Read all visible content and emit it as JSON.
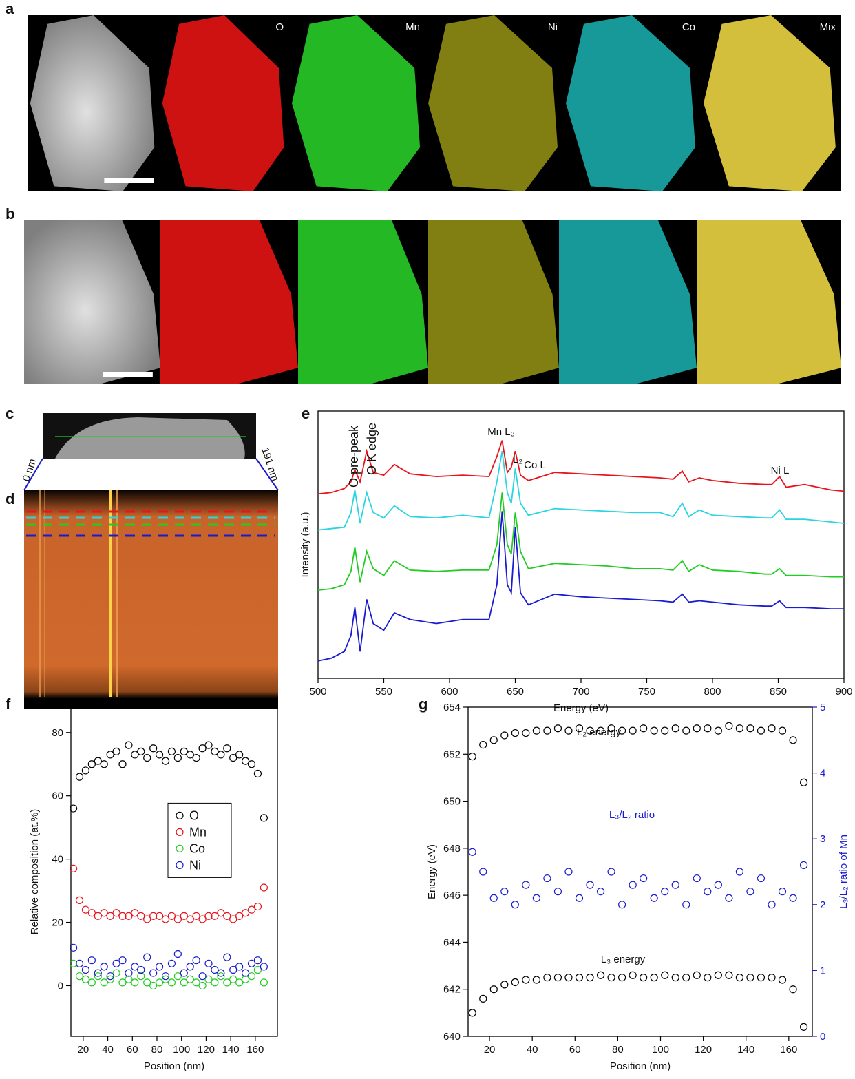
{
  "images": {
    "a": {
      "panel": "a",
      "labels": [
        "O",
        "Mn",
        "Ni",
        "Co",
        "Mix"
      ]
    },
    "b": {
      "panel": "b"
    },
    "c": {
      "panel": "c",
      "start": "0 nm",
      "end": "191 nm"
    },
    "d": {
      "panel": "d"
    }
  },
  "chart_data": [
    {
      "type": "line",
      "panel": "e",
      "xlabel": "Energy (eV)",
      "ylabel": "Intensity (a.u.)",
      "xlim": [
        500,
        900
      ],
      "xticks": [
        500,
        550,
        600,
        650,
        700,
        750,
        800,
        850,
        900
      ],
      "ylim": [
        0,
        10
      ],
      "annotations": [
        "O pre-peak",
        "O K edge",
        "Mn L₃",
        "L₂",
        "Co L",
        "Ni L"
      ],
      "x": [
        500,
        510,
        520,
        525,
        528,
        532,
        537,
        542,
        550,
        558,
        570,
        590,
        610,
        630,
        636,
        640,
        644,
        647,
        650,
        654,
        660,
        680,
        700,
        720,
        740,
        760,
        770,
        777,
        782,
        790,
        800,
        820,
        840,
        845,
        851,
        856,
        870,
        890,
        900
      ],
      "series": [
        {
          "color": "#e8141c",
          "values": [
            6.9,
            6.95,
            7.1,
            7.35,
            7.8,
            7.35,
            8.5,
            7.7,
            7.6,
            8.0,
            7.65,
            7.55,
            7.6,
            7.55,
            8.3,
            8.9,
            7.7,
            7.9,
            8.5,
            7.6,
            7.4,
            7.7,
            7.65,
            7.6,
            7.55,
            7.5,
            7.45,
            7.75,
            7.35,
            7.5,
            7.4,
            7.3,
            7.25,
            7.25,
            7.55,
            7.15,
            7.25,
            7.05,
            7.0
          ]
        },
        {
          "color": "#2ad4e0",
          "values": [
            5.55,
            5.6,
            5.65,
            6.2,
            7.05,
            5.8,
            6.95,
            6.2,
            6.0,
            6.45,
            6.05,
            6.0,
            6.1,
            6.0,
            7.35,
            8.5,
            6.95,
            6.55,
            7.85,
            6.55,
            6.1,
            6.35,
            6.3,
            6.25,
            6.2,
            6.2,
            6.05,
            6.55,
            6.05,
            6.3,
            6.1,
            6.05,
            6.0,
            6.0,
            6.3,
            5.95,
            5.95,
            5.85,
            5.8
          ]
        },
        {
          "color": "#22cc22",
          "values": [
            3.3,
            3.35,
            3.5,
            4.0,
            4.9,
            3.6,
            4.75,
            4.1,
            3.85,
            4.4,
            4.05,
            4.0,
            4.05,
            4.05,
            5.0,
            6.95,
            5.0,
            4.65,
            6.2,
            4.75,
            4.1,
            4.3,
            4.25,
            4.2,
            4.1,
            4.1,
            4.05,
            4.4,
            4.0,
            4.25,
            4.05,
            4.0,
            3.9,
            3.9,
            4.1,
            3.85,
            3.85,
            3.8,
            3.8
          ]
        },
        {
          "color": "#1a1ad0",
          "values": [
            0.65,
            0.75,
            1.0,
            1.6,
            2.65,
            1.0,
            2.95,
            2.05,
            1.8,
            2.45,
            2.2,
            2.05,
            2.2,
            2.2,
            3.5,
            6.25,
            3.5,
            3.2,
            5.65,
            3.2,
            2.75,
            3.15,
            3.05,
            3.0,
            2.95,
            2.9,
            2.85,
            3.15,
            2.85,
            2.9,
            2.85,
            2.75,
            2.7,
            2.7,
            2.9,
            2.65,
            2.65,
            2.6,
            2.6
          ]
        }
      ]
    },
    {
      "type": "scatter",
      "panel": "f",
      "xlabel": "Position (nm)",
      "ylabel": "Relative composition (at.%)",
      "xlim": [
        10,
        178
      ],
      "xticks": [
        20,
        40,
        60,
        80,
        100,
        120,
        140,
        160
      ],
      "ylim": [
        -16,
        88
      ],
      "yticks": [
        0,
        20,
        40,
        60,
        80
      ],
      "legend": "center",
      "x": [
        12,
        17,
        22,
        27,
        32,
        37,
        42,
        47,
        52,
        57,
        62,
        67,
        72,
        77,
        82,
        87,
        92,
        97,
        102,
        107,
        112,
        117,
        122,
        127,
        132,
        137,
        142,
        147,
        152,
        157,
        162,
        167
      ],
      "series": [
        {
          "name": "O",
          "color": "#000000",
          "values": [
            56,
            66,
            68,
            70,
            71,
            70,
            73,
            74,
            70,
            76,
            73,
            74,
            72,
            75,
            73,
            71,
            74,
            72,
            74,
            73,
            72,
            75,
            76,
            74,
            73,
            75,
            72,
            73,
            71,
            70,
            67,
            53
          ]
        },
        {
          "name": "Mn",
          "color": "#e8141c",
          "values": [
            37,
            27,
            24,
            23,
            22,
            23,
            22,
            23,
            22,
            22,
            23,
            22,
            21,
            22,
            22,
            21,
            22,
            21,
            22,
            21,
            22,
            21,
            22,
            22,
            23,
            22,
            21,
            22,
            23,
            24,
            25,
            31
          ]
        },
        {
          "name": "Co",
          "color": "#22cc22",
          "values": [
            7,
            3,
            2,
            1,
            3,
            1,
            2,
            4,
            1,
            2,
            1,
            3,
            1,
            0,
            1,
            2,
            1,
            3,
            1,
            2,
            1,
            0,
            2,
            1,
            3,
            1,
            2,
            1,
            2,
            3,
            5,
            1
          ]
        },
        {
          "name": "Ni",
          "color": "#1a1ad0",
          "values": [
            12,
            7,
            5,
            8,
            4,
            6,
            3,
            7,
            8,
            4,
            6,
            5,
            9,
            4,
            6,
            3,
            7,
            10,
            4,
            6,
            8,
            3,
            7,
            5,
            4,
            9,
            5,
            6,
            4,
            7,
            8,
            6
          ]
        }
      ]
    },
    {
      "type": "scatter",
      "panel": "g",
      "xlabel": "Position (nm)",
      "ylabel": "Energy (eV)",
      "y2label": "L₃/L₂ ratio of Mn",
      "xlim": [
        10,
        171
      ],
      "xticks": [
        20,
        40,
        60,
        80,
        100,
        120,
        140,
        160
      ],
      "ylim": [
        640,
        654
      ],
      "yticks": [
        640,
        642,
        644,
        646,
        648,
        650,
        652,
        654
      ],
      "y2lim": [
        0,
        5
      ],
      "y2ticks": [
        0,
        1,
        2,
        3,
        4,
        5
      ],
      "x": [
        12,
        17,
        22,
        27,
        32,
        37,
        42,
        47,
        52,
        57,
        62,
        67,
        72,
        77,
        82,
        87,
        92,
        97,
        102,
        107,
        112,
        117,
        122,
        127,
        132,
        137,
        142,
        147,
        152,
        157,
        162,
        167
      ],
      "series": [
        {
          "name": "L₂ energy",
          "color": "#000000",
          "values": [
            651.9,
            652.4,
            652.6,
            652.8,
            652.9,
            652.9,
            653.0,
            653.0,
            653.1,
            653.0,
            653.1,
            653.0,
            653.0,
            653.1,
            653.0,
            653.0,
            653.1,
            653.0,
            653.0,
            653.1,
            653.0,
            653.1,
            653.1,
            653.0,
            653.2,
            653.1,
            653.1,
            653.0,
            653.1,
            653.0,
            652.6,
            650.8
          ]
        },
        {
          "name": "L₃/L₂ ratio",
          "color": "#1a1ad0",
          "axis": "y2",
          "values": [
            2.8,
            2.5,
            2.1,
            2.2,
            2.0,
            2.3,
            2.1,
            2.4,
            2.2,
            2.5,
            2.1,
            2.3,
            2.2,
            2.5,
            2.0,
            2.3,
            2.4,
            2.1,
            2.2,
            2.3,
            2.0,
            2.4,
            2.2,
            2.3,
            2.1,
            2.5,
            2.2,
            2.4,
            2.0,
            2.2,
            2.1,
            2.6
          ]
        },
        {
          "name": "L₃ energy",
          "color": "#000000",
          "values": [
            641.0,
            641.6,
            642.0,
            642.2,
            642.3,
            642.4,
            642.4,
            642.5,
            642.5,
            642.5,
            642.5,
            642.5,
            642.6,
            642.5,
            642.5,
            642.6,
            642.5,
            642.5,
            642.6,
            642.5,
            642.5,
            642.6,
            642.5,
            642.6,
            642.6,
            642.5,
            642.5,
            642.5,
            642.5,
            642.4,
            642.0,
            640.4
          ]
        }
      ]
    }
  ]
}
